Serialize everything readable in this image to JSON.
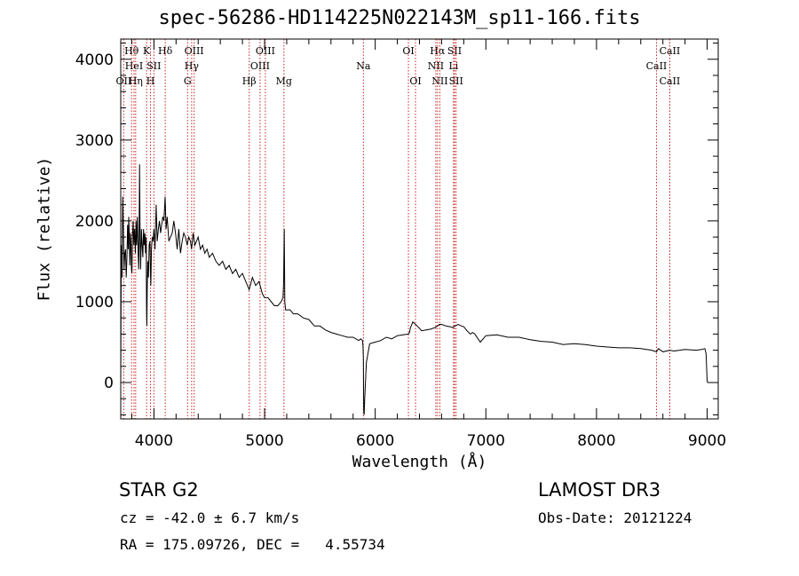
{
  "footer": {
    "object_class": "STAR    G2",
    "survey": "LAMOST DR3",
    "cz_line": "cz = -42.0 ± 6.7 km/s",
    "obs_date": "Obs-Date: 20121224",
    "radec_line": "RA = 175.09726, DEC =   4.55734"
  },
  "chart_data": {
    "type": "line",
    "title": "spec-56286-HD114225N022143M_sp11-166.fits",
    "xlabel": "Wavelength (Å)",
    "ylabel": "Flux (relative)",
    "xlim": [
      3700,
      9100
    ],
    "ylim": [
      -450,
      4250
    ],
    "xticks": [
      4000,
      5000,
      6000,
      7000,
      8000,
      9000
    ],
    "yticks": [
      0,
      1000,
      2000,
      3000,
      4000
    ],
    "grid": false,
    "line_color": "#000000",
    "marker_color": "#cc2222",
    "series": [
      {
        "name": "flux",
        "x": [
          3700,
          3705,
          3712,
          3718,
          3724,
          3730,
          3737,
          3743,
          3750,
          3756,
          3762,
          3768,
          3772,
          3777,
          3782,
          3788,
          3793,
          3797,
          3801,
          3806,
          3812,
          3818,
          3825,
          3832,
          3838,
          3844,
          3850,
          3857,
          3862,
          3866,
          3870,
          3875,
          3880,
          3887,
          3893,
          3900,
          3906,
          3912,
          3918,
          3924,
          3930,
          3933,
          3936,
          3940,
          3945,
          3950,
          3957,
          3964,
          3968,
          3972,
          3978,
          3985,
          3992,
          4000,
          4010,
          4020,
          4030,
          4040,
          4050,
          4060,
          4070,
          4080,
          4090,
          4101,
          4110,
          4120,
          4135,
          4150,
          4165,
          4180,
          4195,
          4210,
          4225,
          4240,
          4255,
          4270,
          4285,
          4300,
          4315,
          4330,
          4340,
          4355,
          4370,
          4385,
          4400,
          4420,
          4440,
          4460,
          4480,
          4500,
          4530,
          4560,
          4590,
          4620,
          4650,
          4680,
          4710,
          4740,
          4770,
          4800,
          4830,
          4861,
          4890,
          4920,
          4950,
          4980,
          5000,
          5030,
          5060,
          5090,
          5120,
          5150,
          5167,
          5172,
          5175,
          5178,
          5183,
          5190,
          5200,
          5230,
          5260,
          5300,
          5350,
          5400,
          5450,
          5500,
          5550,
          5600,
          5650,
          5700,
          5750,
          5800,
          5850,
          5870,
          5885,
          5890,
          5893,
          5896,
          5900,
          5905,
          5920,
          5950,
          6000,
          6050,
          6100,
          6150,
          6200,
          6250,
          6300,
          6310,
          6318,
          6325,
          6340,
          6380,
          6420,
          6460,
          6500,
          6540,
          6563,
          6580,
          6600,
          6640,
          6680,
          6700,
          6720,
          6750,
          6780,
          6800,
          6830,
          6860,
          6880,
          6900,
          6950,
          7000,
          7100,
          7200,
          7300,
          7400,
          7500,
          7600,
          7700,
          7800,
          7900,
          8000,
          8100,
          8200,
          8300,
          8400,
          8498,
          8520,
          8542,
          8560,
          8600,
          8662,
          8700,
          8800,
          8900,
          8950,
          8980,
          8990,
          9000,
          9003
        ],
        "y": [
          -30,
          1700,
          1300,
          2300,
          1900,
          1400,
          1600,
          1650,
          1300,
          1550,
          1950,
          1650,
          2050,
          1850,
          1450,
          1850,
          1700,
          1400,
          1350,
          1800,
          2000,
          1700,
          1900,
          1600,
          2000,
          1700,
          2050,
          1600,
          1400,
          1800,
          2700,
          1800,
          1400,
          1900,
          1700,
          1550,
          1900,
          1700,
          1850,
          1600,
          1800,
          1000,
          700,
          1200,
          1500,
          1300,
          1700,
          1750,
          1400,
          1200,
          1650,
          1800,
          1750,
          1900,
          1650,
          2200,
          1750,
          1900,
          2000,
          1850,
          1950,
          2050,
          2000,
          2300,
          1900,
          2050,
          1750,
          1800,
          1850,
          2000,
          1850,
          1650,
          1900,
          1600,
          1750,
          1850,
          1800,
          1700,
          1800,
          1750,
          1650,
          1850,
          1700,
          1750,
          1800,
          1650,
          1700,
          1600,
          1650,
          1550,
          1600,
          1500,
          1450,
          1500,
          1400,
          1450,
          1350,
          1400,
          1300,
          1350,
          1250,
          1150,
          1300,
          1200,
          1250,
          1100,
          1050,
          1050,
          1000,
          950,
          950,
          1000,
          1050,
          1250,
          1550,
          1900,
          1000,
          900,
          900,
          900,
          850,
          850,
          800,
          780,
          700,
          700,
          650,
          620,
          600,
          580,
          560,
          560,
          520,
          540,
          520,
          450,
          300,
          -350,
          -400,
          -200,
          250,
          480,
          500,
          520,
          560,
          540,
          580,
          590,
          600,
          620,
          680,
          700,
          750,
          700,
          640,
          650,
          660,
          680,
          700,
          720,
          720,
          700,
          690,
          680,
          700,
          720,
          700,
          690,
          640,
          600,
          620,
          600,
          500,
          580,
          590,
          560,
          560,
          530,
          510,
          500,
          470,
          480,
          470,
          450,
          440,
          430,
          430,
          420,
          400,
          390,
          380,
          420,
          380,
          400,
          390,
          410,
          400,
          410,
          420,
          360,
          30,
          0
        ]
      }
    ],
    "line_markers": [
      {
        "label": "OII",
        "wavelength": 3727,
        "row": 3
      },
      {
        "label": "Hθ",
        "wavelength": 3798,
        "row": 1
      },
      {
        "label": "HeI",
        "wavelength": 3820,
        "row": 2
      },
      {
        "label": "Hη",
        "wavelength": 3835,
        "row": 3
      },
      {
        "label": "K",
        "wavelength": 3934,
        "row": 1
      },
      {
        "label": "SII",
        "wavelength": 4000,
        "row": 2
      },
      {
        "label": "H",
        "wavelength": 3969,
        "row": 3
      },
      {
        "label": "Hδ",
        "wavelength": 4102,
        "row": 1
      },
      {
        "label": "OIII",
        "wavelength": 4363,
        "row": 1
      },
      {
        "label": "Hγ",
        "wavelength": 4341,
        "row": 2
      },
      {
        "label": "G",
        "wavelength": 4304,
        "row": 3
      },
      {
        "label": "Hβ",
        "wavelength": 4861,
        "row": 3
      },
      {
        "label": "OIII",
        "wavelength": 5007,
        "row": 1
      },
      {
        "label": "OIII",
        "wavelength": 4959,
        "row": 2
      },
      {
        "label": "Mg",
        "wavelength": 5175,
        "row": 3
      },
      {
        "label": "Na",
        "wavelength": 5893,
        "row": 2
      },
      {
        "label": "OI",
        "wavelength": 6300,
        "row": 1
      },
      {
        "label": "OI",
        "wavelength": 6364,
        "row": 3
      },
      {
        "label": "Hα",
        "wavelength": 6563,
        "row": 1
      },
      {
        "label": "NII",
        "wavelength": 6548,
        "row": 2
      },
      {
        "label": "NII",
        "wavelength": 6584,
        "row": 3
      },
      {
        "label": "SII",
        "wavelength": 6717,
        "row": 1
      },
      {
        "label": "Li",
        "wavelength": 6708,
        "row": 2
      },
      {
        "label": "SII",
        "wavelength": 6731,
        "row": 3
      },
      {
        "label": "CaII",
        "wavelength": 8662,
        "row": 1
      },
      {
        "label": "CaII",
        "wavelength": 8542,
        "row": 2
      },
      {
        "label": "CaII",
        "wavelength": 8662,
        "row": 3
      }
    ]
  }
}
